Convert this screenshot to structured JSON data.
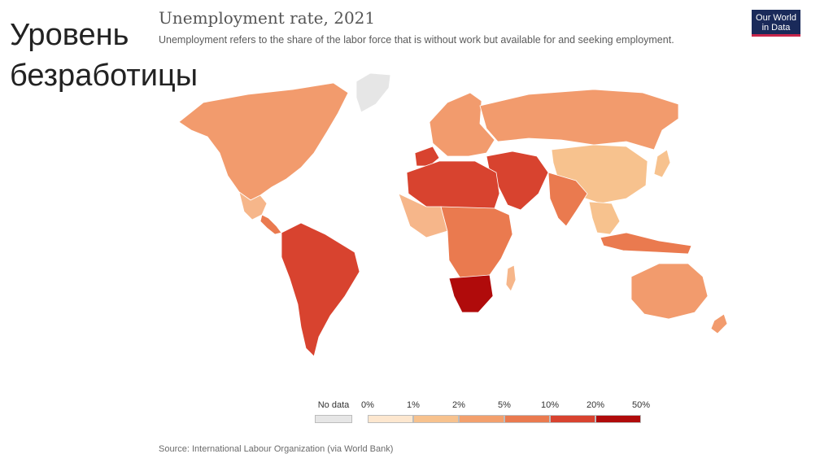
{
  "slide": {
    "title": "Уровень безработицы"
  },
  "map": {
    "title": "Unemployment rate, 2021",
    "subtitle": "Unemployment refers to the share of the labor force that is without work but available for and seeking employment.",
    "logo": {
      "line1": "Our World",
      "line2": "in Data"
    },
    "source": "Source: International Labour Organization (via World Bank)"
  },
  "legend": {
    "no_data": {
      "label": "No data",
      "color": "#e6e6e6"
    },
    "ticks": [
      "0%",
      "1%",
      "2%",
      "5%",
      "10%",
      "20%",
      "50%"
    ],
    "colors": [
      "#fde7cf",
      "#f7c28e",
      "#f3a06d",
      "#ea7a4f",
      "#d8432f",
      "#b00b0b"
    ]
  },
  "regions": [
    {
      "name": "North America",
      "color": "#f29b6d"
    },
    {
      "name": "Greenland",
      "color": "#e6e6e6"
    },
    {
      "name": "Mexico",
      "color": "#f6b68a"
    },
    {
      "name": "Central America",
      "color": "#ea7a4f"
    },
    {
      "name": "South America",
      "color": "#d8432f"
    },
    {
      "name": "Western Europe",
      "color": "#f29b6d"
    },
    {
      "name": "Spain",
      "color": "#d8432f"
    },
    {
      "name": "Russia",
      "color": "#f29b6d"
    },
    {
      "name": "Middle East",
      "color": "#d8432f"
    },
    {
      "name": "North Africa",
      "color": "#d8432f"
    },
    {
      "name": "West Africa",
      "color": "#f6b68a"
    },
    {
      "name": "Central Africa",
      "color": "#ea7a4f"
    },
    {
      "name": "Southern Africa",
      "color": "#b00b0b"
    },
    {
      "name": "Madagascar",
      "color": "#f6b68a"
    },
    {
      "name": "China",
      "color": "#f7c28e"
    },
    {
      "name": "India",
      "color": "#ea7a4f"
    },
    {
      "name": "Southeast Asia",
      "color": "#f7c28e"
    },
    {
      "name": "Indonesia",
      "color": "#ea7a4f"
    },
    {
      "name": "Japan",
      "color": "#f7c28e"
    },
    {
      "name": "Australia",
      "color": "#f29b6d"
    },
    {
      "name": "New Zealand",
      "color": "#f29b6d"
    }
  ]
}
